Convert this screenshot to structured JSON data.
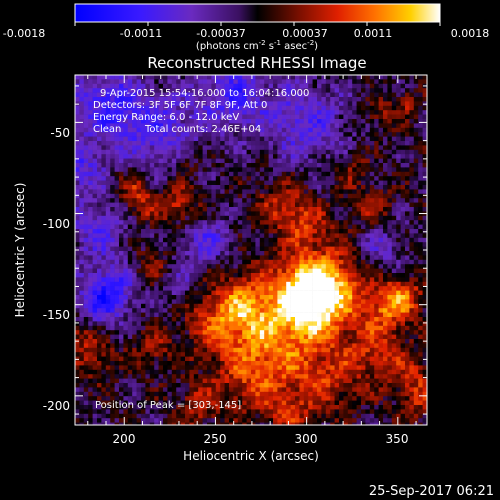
{
  "colorbar": {
    "tick_labels": [
      "-0.0018",
      "-0.0011",
      "-0.00037",
      "0.00037",
      "0.0011",
      "0.0018"
    ],
    "units_line": [
      "(photons cm",
      "-2",
      " s",
      "-1",
      " asec",
      "-2",
      ")"
    ]
  },
  "title": "Reconstructed RHESSI Image",
  "annotations": {
    "time_range": "9-Apr-2015 15:54:16.000 to 16:04:16.000",
    "detectors": "Detectors: 3F 5F 6F 7F 8F 9F, Att 0",
    "energy_range": "Energy Range: 6.0 - 12.0 keV",
    "method": "Clean",
    "total_counts": "Total counts: 2.46E+04",
    "peak_position": "Position of Peak = [303,-145]"
  },
  "axes": {
    "xlabel": "Heliocentric X (arcsec)",
    "ylabel": "Heliocentric Y (arcsec)",
    "x_ticks": [
      200,
      250,
      300,
      350
    ],
    "y_ticks": [
      -50,
      -100,
      -150,
      -200
    ],
    "x_range": [
      173,
      366
    ],
    "y_range": [
      -216,
      -24
    ]
  },
  "footer_timestamp": "25-Sep-2017 06:21",
  "colors": {
    "background": "#000000",
    "low": "#0000ff",
    "mid": "#000000",
    "high": "#ffffff"
  },
  "chart_data": {
    "type": "heatmap",
    "title": "Reconstructed RHESSI Image",
    "xlabel": "Heliocentric X (arcsec)",
    "ylabel": "Heliocentric Y (arcsec)",
    "xlim": [
      173,
      366
    ],
    "ylim": [
      -216,
      -24
    ],
    "value_range": [
      -0.0018,
      0.0018
    ],
    "peak": {
      "x": 303,
      "y": -145
    }
  }
}
